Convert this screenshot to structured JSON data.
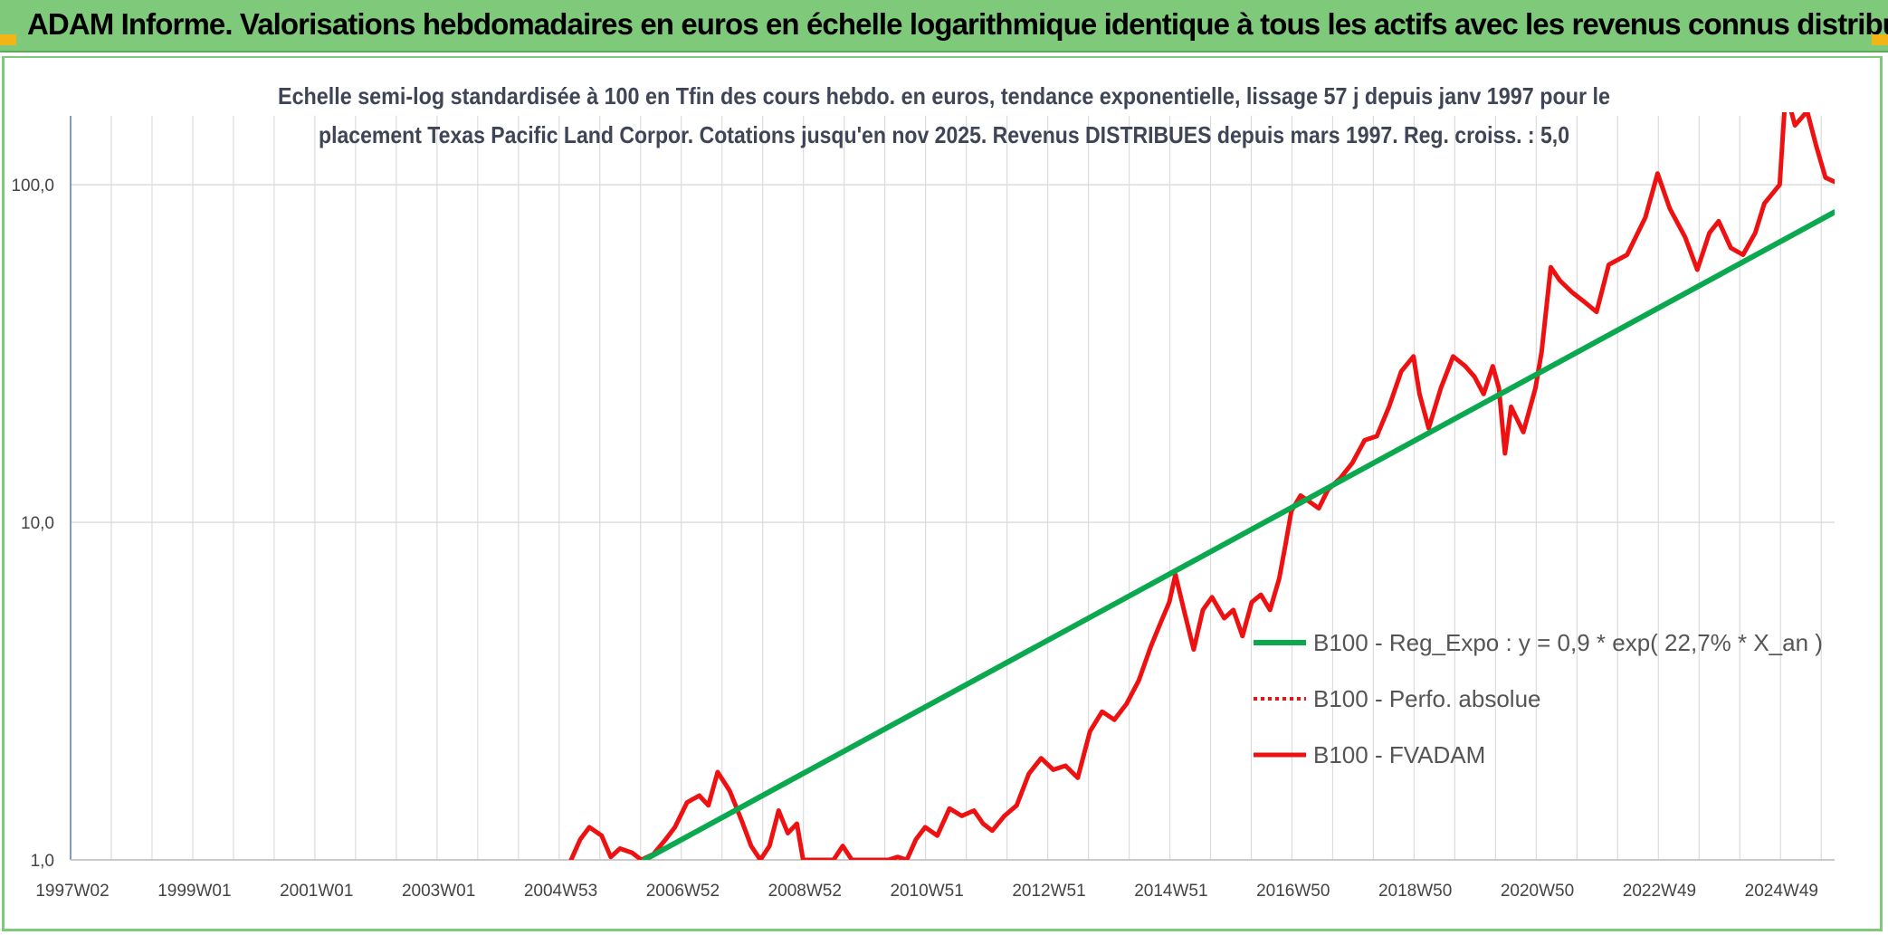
{
  "banner": {
    "title": "ADAM Informe. Valorisations hebdomadaires en euros en échelle logarithmique identique à tous les actifs avec les revenus connus distribués"
  },
  "colors": {
    "banner": "#7ec97a",
    "corner": "#f2b417",
    "trend": "#0aa84f",
    "fvadam": "#ee1111",
    "perfo": "#ee1111",
    "grid": "#dcdcdc"
  },
  "chart_data": {
    "type": "line",
    "title": "Echelle semi-log standardisée à 100 en Tfin des cours hebdo. en euros, tendance exponentielle, lissage 57 j depuis janv 1997 pour le placement Texas Pacific Land Corpor. Cotations jusqu'en nov 2025. Revenus DISTRIBUES depuis mars 1997. Reg. croiss. : 5,0",
    "title_lines": [
      "Echelle semi-log standardisée à 100 en Tfin des cours hebdo. en euros, tendance exponentielle, lissage 57 j depuis janv 1997 pour le",
      "placement Texas Pacific Land Corpor. Cotations jusqu'en nov 2025. Revenus DISTRIBUES depuis mars 1997. Reg. croiss. : 5,0"
    ],
    "y_scale": "log",
    "ylim": [
      1,
      160
    ],
    "xlim": [
      1997.0,
      2025.9
    ],
    "x_ticks": [
      {
        "x": 1997.0,
        "label": "1997W02"
      },
      {
        "x": 1999.0,
        "label": "1999W01"
      },
      {
        "x": 2001.0,
        "label": "2001W01"
      },
      {
        "x": 2003.0,
        "label": "2003W01"
      },
      {
        "x": 2005.0,
        "label": "2004W53"
      },
      {
        "x": 2007.0,
        "label": "2006W52"
      },
      {
        "x": 2009.0,
        "label": "2008W52"
      },
      {
        "x": 2011.0,
        "label": "2010W51"
      },
      {
        "x": 2013.0,
        "label": "2012W51"
      },
      {
        "x": 2015.0,
        "label": "2014W51"
      },
      {
        "x": 2017.0,
        "label": "2016W50"
      },
      {
        "x": 2019.0,
        "label": "2018W50"
      },
      {
        "x": 2021.0,
        "label": "2020W50"
      },
      {
        "x": 2023.0,
        "label": "2022W49"
      },
      {
        "x": 2025.0,
        "label": "2024W49"
      }
    ],
    "y_ticks": [
      {
        "y": 1,
        "label": "1,0"
      },
      {
        "y": 10,
        "label": "10,0"
      },
      {
        "y": 100,
        "label": "100,0"
      }
    ],
    "grid": true,
    "legend_position": "right",
    "series": [
      {
        "name": "B100 - Reg_Expo : y = 0,9 * exp( 22,7% *  X_an )",
        "style": "solid",
        "points": [
          [
            2006.4,
            1.0
          ],
          [
            2025.9,
            83.0
          ]
        ]
      },
      {
        "name": "B100 - Perfo. absolue",
        "style": "dotted",
        "points": []
      },
      {
        "name": "B100 - FVADAM",
        "style": "solid",
        "points": [
          [
            2005.2,
            1.0
          ],
          [
            2005.35,
            1.15
          ],
          [
            2005.5,
            1.25
          ],
          [
            2005.7,
            1.18
          ],
          [
            2005.85,
            1.02
          ],
          [
            2006.0,
            1.08
          ],
          [
            2006.2,
            1.05
          ],
          [
            2006.35,
            1.0
          ],
          [
            2006.55,
            1.04
          ],
          [
            2006.75,
            1.15
          ],
          [
            2006.9,
            1.25
          ],
          [
            2007.1,
            1.48
          ],
          [
            2007.3,
            1.55
          ],
          [
            2007.45,
            1.45
          ],
          [
            2007.6,
            1.82
          ],
          [
            2007.8,
            1.6
          ],
          [
            2008.0,
            1.3
          ],
          [
            2008.15,
            1.1
          ],
          [
            2008.3,
            1.0
          ],
          [
            2008.45,
            1.1
          ],
          [
            2008.6,
            1.4
          ],
          [
            2008.75,
            1.2
          ],
          [
            2008.9,
            1.28
          ],
          [
            2009.0,
            1.0
          ],
          [
            2009.5,
            1.0
          ],
          [
            2009.65,
            1.1
          ],
          [
            2009.8,
            1.0
          ],
          [
            2010.4,
            1.0
          ],
          [
            2010.55,
            1.02
          ],
          [
            2010.7,
            1.0
          ],
          [
            2010.85,
            1.15
          ],
          [
            2011.0,
            1.25
          ],
          [
            2011.2,
            1.18
          ],
          [
            2011.4,
            1.42
          ],
          [
            2011.6,
            1.35
          ],
          [
            2011.8,
            1.4
          ],
          [
            2011.95,
            1.28
          ],
          [
            2012.1,
            1.22
          ],
          [
            2012.3,
            1.35
          ],
          [
            2012.5,
            1.45
          ],
          [
            2012.7,
            1.8
          ],
          [
            2012.9,
            2.0
          ],
          [
            2013.1,
            1.85
          ],
          [
            2013.3,
            1.9
          ],
          [
            2013.5,
            1.75
          ],
          [
            2013.7,
            2.4
          ],
          [
            2013.9,
            2.75
          ],
          [
            2014.1,
            2.6
          ],
          [
            2014.3,
            2.9
          ],
          [
            2014.5,
            3.4
          ],
          [
            2014.7,
            4.3
          ],
          [
            2014.85,
            5.0
          ],
          [
            2015.0,
            5.8
          ],
          [
            2015.1,
            7.0
          ],
          [
            2015.25,
            5.4
          ],
          [
            2015.4,
            4.2
          ],
          [
            2015.55,
            5.5
          ],
          [
            2015.7,
            6.0
          ],
          [
            2015.9,
            5.2
          ],
          [
            2016.05,
            5.5
          ],
          [
            2016.2,
            4.6
          ],
          [
            2016.35,
            5.8
          ],
          [
            2016.5,
            6.1
          ],
          [
            2016.65,
            5.5
          ],
          [
            2016.8,
            6.8
          ],
          [
            2016.9,
            8.5
          ],
          [
            2017.0,
            10.8
          ],
          [
            2017.15,
            12.0
          ],
          [
            2017.3,
            11.5
          ],
          [
            2017.45,
            11.0
          ],
          [
            2017.6,
            12.5
          ],
          [
            2017.8,
            13.5
          ],
          [
            2018.0,
            15.0
          ],
          [
            2018.2,
            17.5
          ],
          [
            2018.4,
            18.0
          ],
          [
            2018.6,
            22.0
          ],
          [
            2018.8,
            28.0
          ],
          [
            2019.0,
            31.0
          ],
          [
            2019.1,
            24.0
          ],
          [
            2019.25,
            19.0
          ],
          [
            2019.45,
            25.0
          ],
          [
            2019.65,
            31.0
          ],
          [
            2019.85,
            29.0
          ],
          [
            2020.0,
            27.0
          ],
          [
            2020.15,
            24.0
          ],
          [
            2020.3,
            29.0
          ],
          [
            2020.4,
            25.0
          ],
          [
            2020.5,
            16.0
          ],
          [
            2020.6,
            22.0
          ],
          [
            2020.8,
            18.5
          ],
          [
            2021.0,
            25.0
          ],
          [
            2021.1,
            32.0
          ],
          [
            2021.25,
            57.0
          ],
          [
            2021.4,
            52.0
          ],
          [
            2021.6,
            48.0
          ],
          [
            2021.8,
            45.0
          ],
          [
            2022.0,
            42.0
          ],
          [
            2022.2,
            58.0
          ],
          [
            2022.5,
            62.0
          ],
          [
            2022.8,
            80.0
          ],
          [
            2023.0,
            108.0
          ],
          [
            2023.2,
            85.0
          ],
          [
            2023.45,
            70.0
          ],
          [
            2023.65,
            56.0
          ],
          [
            2023.85,
            72.0
          ],
          [
            2024.0,
            78.0
          ],
          [
            2024.2,
            65.0
          ],
          [
            2024.4,
            62.0
          ],
          [
            2024.6,
            72.0
          ],
          [
            2024.75,
            88.0
          ],
          [
            2025.0,
            100.0
          ],
          [
            2025.1,
            190.0
          ],
          [
            2025.25,
            150.0
          ],
          [
            2025.45,
            165.0
          ],
          [
            2025.6,
            130.0
          ],
          [
            2025.75,
            105.0
          ],
          [
            2025.9,
            102.0
          ]
        ]
      }
    ]
  }
}
